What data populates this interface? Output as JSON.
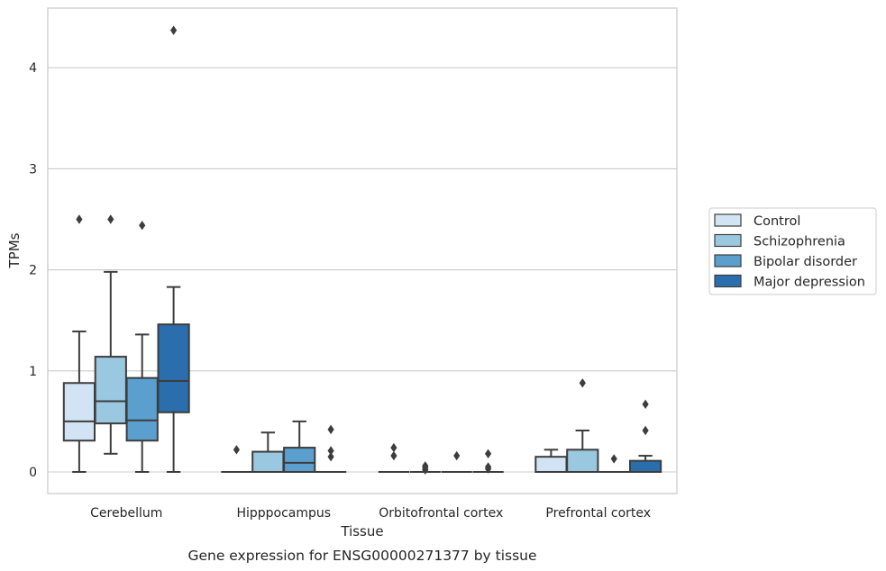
{
  "chart_data": {
    "type": "box",
    "title": "",
    "xlabel": "Tissue",
    "ylabel": "TPMs",
    "caption": "Gene expression for ENSG00000271377 by tissue",
    "ylim": [
      -0.21,
      4.6
    ],
    "yticks": [
      0,
      1,
      2,
      3,
      4
    ],
    "grid": "horizontal",
    "legend_position": "right",
    "categories": [
      "Cerebellum",
      "Hipppocampus",
      "Orbitofrontal cortex",
      "Prefrontal cortex"
    ],
    "series": [
      {
        "name": "Control",
        "color": "#d2e3f3",
        "boxes": [
          {
            "low": 0.0,
            "q1": 0.31,
            "median": 0.5,
            "q3": 0.88,
            "high": 1.39,
            "outliers": [
              2.5
            ]
          },
          {
            "low": 0.0,
            "q1": 0.0,
            "median": 0.0,
            "q3": 0.0,
            "high": 0.0,
            "outliers": [
              0.22
            ]
          },
          {
            "low": 0.0,
            "q1": 0.0,
            "median": 0.0,
            "q3": 0.0,
            "high": 0.0,
            "outliers": [
              0.24,
              0.16
            ]
          },
          {
            "low": 0.0,
            "q1": 0.0,
            "median": 0.0,
            "q3": 0.15,
            "high": 0.22,
            "outliers": []
          }
        ]
      },
      {
        "name": "Schizophrenia",
        "color": "#9ac8e0",
        "boxes": [
          {
            "low": 0.18,
            "q1": 0.48,
            "median": 0.7,
            "q3": 1.14,
            "high": 1.98,
            "outliers": [
              2.5
            ]
          },
          {
            "low": 0.0,
            "q1": 0.0,
            "median": 0.0,
            "q3": 0.2,
            "high": 0.39,
            "outliers": []
          },
          {
            "low": 0.0,
            "q1": 0.0,
            "median": 0.0,
            "q3": 0.0,
            "high": 0.0,
            "outliers": [
              0.06,
              0.04,
              0.02
            ]
          },
          {
            "low": 0.0,
            "q1": 0.0,
            "median": 0.0,
            "q3": 0.22,
            "high": 0.41,
            "outliers": [
              0.88
            ]
          }
        ]
      },
      {
        "name": "Bipolar disorder",
        "color": "#5a9fcd",
        "boxes": [
          {
            "low": 0.0,
            "q1": 0.31,
            "median": 0.51,
            "q3": 0.93,
            "high": 1.36,
            "outliers": [
              2.44
            ]
          },
          {
            "low": 0.0,
            "q1": 0.0,
            "median": 0.09,
            "q3": 0.24,
            "high": 0.5,
            "outliers": []
          },
          {
            "low": 0.0,
            "q1": 0.0,
            "median": 0.0,
            "q3": 0.0,
            "high": 0.0,
            "outliers": [
              0.16
            ]
          },
          {
            "low": 0.0,
            "q1": 0.0,
            "median": 0.0,
            "q3": 0.0,
            "high": 0.0,
            "outliers": [
              0.13
            ]
          }
        ]
      },
      {
        "name": "Major depression",
        "color": "#2a6ead",
        "boxes": [
          {
            "low": 0.0,
            "q1": 0.59,
            "median": 0.9,
            "q3": 1.46,
            "high": 1.83,
            "outliers": [
              4.37
            ]
          },
          {
            "low": 0.0,
            "q1": 0.0,
            "median": 0.0,
            "q3": 0.0,
            "high": 0.0,
            "outliers": [
              0.42,
              0.21,
              0.15
            ]
          },
          {
            "low": 0.0,
            "q1": 0.0,
            "median": 0.0,
            "q3": 0.0,
            "high": 0.0,
            "outliers": [
              0.18,
              0.05,
              0.03
            ]
          },
          {
            "low": 0.0,
            "q1": 0.0,
            "median": 0.0,
            "q3": 0.11,
            "high": 0.16,
            "outliers": [
              0.67,
              0.41
            ]
          }
        ]
      }
    ]
  }
}
